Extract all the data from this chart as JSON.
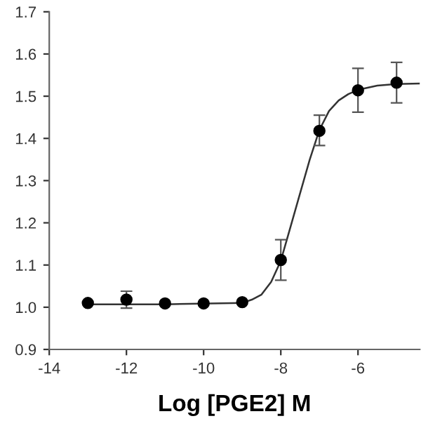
{
  "chart_data": {
    "type": "scatter",
    "xlabel": "Log [PGE2] M",
    "xlim": [
      -14,
      -4.4
    ],
    "xticks": [
      -14,
      -12,
      -10,
      -8,
      -6
    ],
    "ylim": [
      0.9,
      1.7
    ],
    "yticks": [
      0.9,
      {
        "value": 1.0,
        "label": "1.0"
      },
      1.1,
      1.2,
      1.3,
      1.4,
      1.5,
      1.6,
      1.7
    ],
    "grid": false,
    "legend": false,
    "marker": "circle",
    "series": [
      {
        "color": "#000000",
        "x": [
          -13,
          -12,
          -11,
          -10,
          -9,
          -8,
          -7,
          -6,
          -5
        ],
        "values": [
          1.01,
          1.018,
          1.009,
          1.009,
          1.012,
          1.112,
          1.418,
          1.514,
          1.532
        ],
        "errors": [
          null,
          0.02,
          null,
          null,
          null,
          0.048,
          [
            1.383,
            1.455
          ],
          0.052,
          0.048
        ]
      },
      {
        "type": "line",
        "color": "#333333",
        "line_style": "solid",
        "marker": "none",
        "x": [
          -13,
          -11,
          -9,
          -8.75,
          -8.5,
          -8.25,
          -8,
          -7.75,
          -7.5,
          -7.25,
          -7,
          -6.75,
          -6.5,
          -6.25,
          -6,
          -5.5,
          -5,
          -4.4
        ],
        "values": [
          1.007,
          1.007,
          1.01,
          1.018,
          1.03,
          1.06,
          1.11,
          1.19,
          1.27,
          1.35,
          1.42,
          1.465,
          1.49,
          1.505,
          1.515,
          1.525,
          1.529,
          1.53
        ]
      }
    ]
  }
}
